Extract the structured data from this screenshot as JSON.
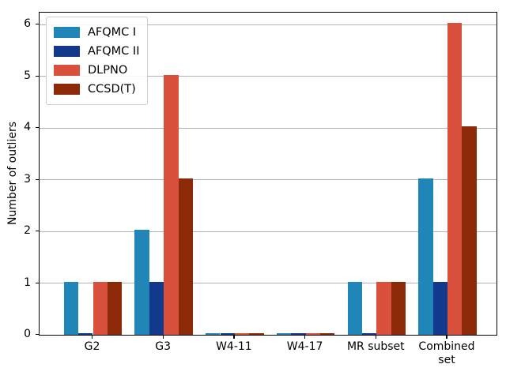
{
  "chart_data": {
    "type": "bar",
    "title": "",
    "xlabel": "",
    "ylabel": "Number of outliers",
    "categories": [
      "G2",
      "G3",
      "W4-11",
      "W4-17",
      "MR subset",
      "Combined\nset"
    ],
    "series": [
      {
        "name": "AFQMC I",
        "color": "#2086b8",
        "values": [
          1,
          2,
          0,
          0,
          1,
          3
        ]
      },
      {
        "name": "AFQMC II",
        "color": "#13398c",
        "values": [
          0,
          1,
          0,
          0,
          0,
          1
        ]
      },
      {
        "name": "DLPNO",
        "color": "#d9503c",
        "values": [
          1,
          5,
          0,
          0,
          1,
          6
        ]
      },
      {
        "name": "CCSD(T)",
        "color": "#8c2906",
        "values": [
          1,
          3,
          0,
          0,
          1,
          4
        ]
      }
    ],
    "yticks": [
      0,
      1,
      2,
      3,
      4,
      5,
      6
    ],
    "ylim": [
      0,
      6.23
    ],
    "grid": true,
    "legend_position": "upper left",
    "bar_epsilon": 0.03,
    "gridline_color": "#b2b2b2"
  }
}
